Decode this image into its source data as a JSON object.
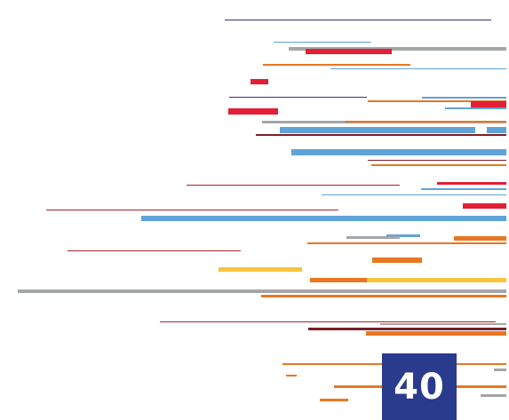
{
  "badge": {
    "number": "40",
    "color": "#2a3a8c",
    "text_color": "#ffffff"
  },
  "palette": {
    "navy": "#3b2f7a",
    "red": "#e21f36",
    "orange": "#e87722",
    "blue": "#5fa3d9",
    "gray": "#a3a6a9",
    "yellow": "#f7c53b",
    "darkred": "#7b1d25",
    "maroon": "#a3242f"
  }
}
